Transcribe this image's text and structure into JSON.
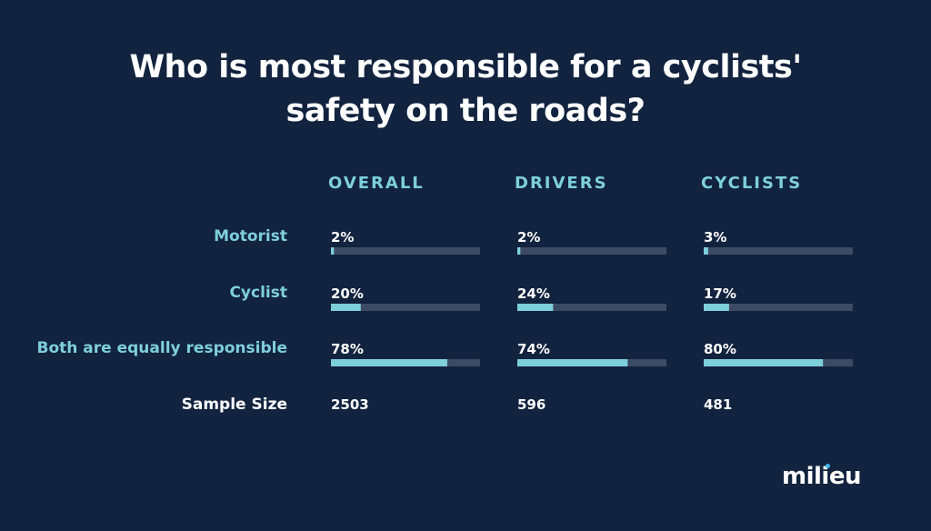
{
  "title_lines": [
    "Who is most responsible for a cyclists'",
    "safety on the roads?"
  ],
  "logo": "milieu",
  "colors": {
    "background": "#12233f",
    "accent": "#7ecfdc",
    "track": "#3c4b63",
    "text": "#ffffff"
  },
  "chart_data": {
    "type": "bar",
    "title": "Who is most responsible for a cyclists' safety on the roads?",
    "categories": [
      "Motorist",
      "Cyclist",
      "Both are equally responsible"
    ],
    "groups": [
      "OVERALL",
      "DRIVERS",
      "CYCLISTS"
    ],
    "series": [
      {
        "name": "OVERALL",
        "values": [
          2,
          20,
          78
        ],
        "labels": [
          "2%",
          "20%",
          "78%"
        ]
      },
      {
        "name": "DRIVERS",
        "values": [
          2,
          24,
          74
        ],
        "labels": [
          "2%",
          "24%",
          "74%"
        ]
      },
      {
        "name": "CYCLISTS",
        "values": [
          3,
          17,
          80
        ],
        "labels": [
          "3%",
          "17%",
          "80%"
        ]
      }
    ],
    "sample_size_label": "Sample Size",
    "sample_sizes": [
      "2503",
      "596",
      "481"
    ],
    "ylim": [
      0,
      100
    ]
  }
}
